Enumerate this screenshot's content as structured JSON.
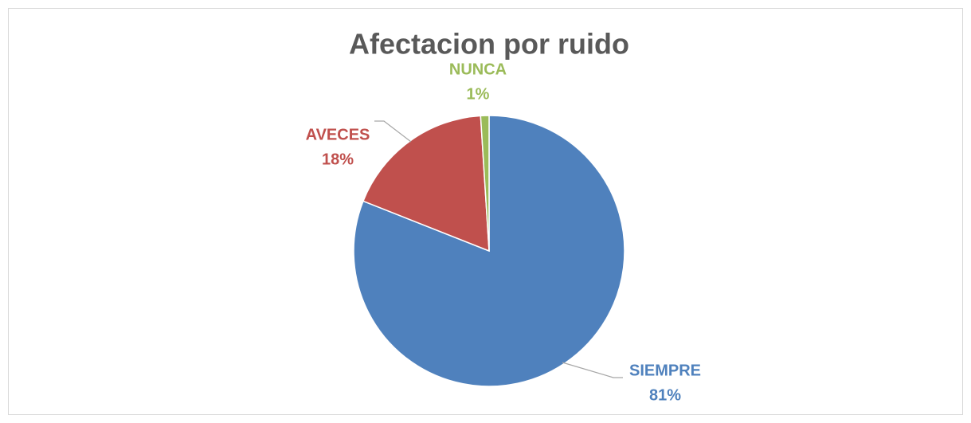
{
  "chart_data": {
    "type": "pie",
    "title": "Afectacion por ruido",
    "categories": [
      "SIEMPRE",
      "AVECES",
      "NUNCA"
    ],
    "values": [
      81,
      18,
      1
    ],
    "value_labels": [
      "81%",
      "18%",
      "1%"
    ],
    "colors": [
      "#4f81bd",
      "#c0504d",
      "#9bbb59"
    ]
  }
}
